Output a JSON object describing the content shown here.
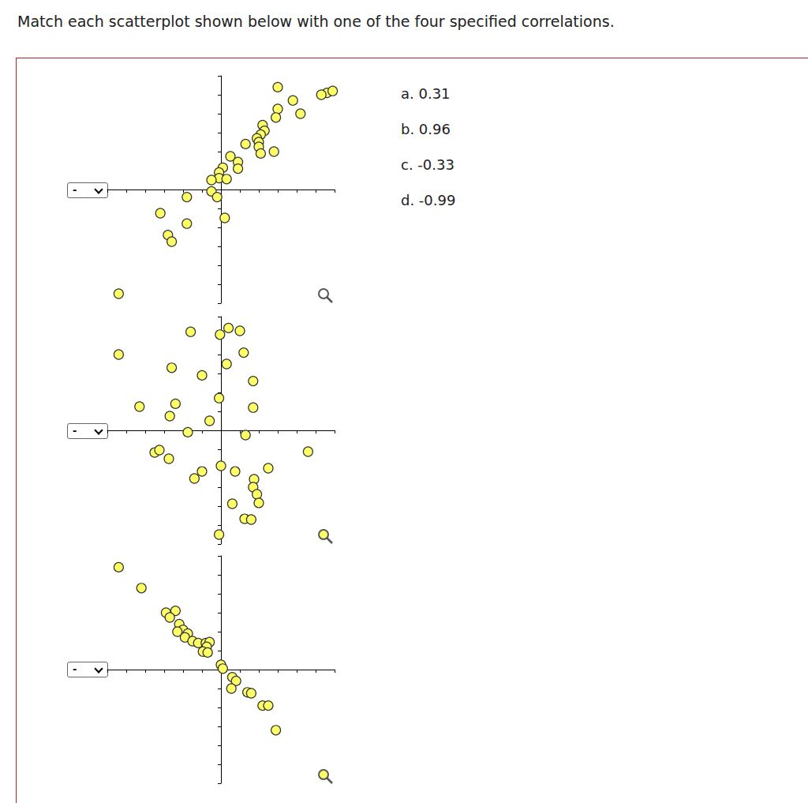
{
  "page": {
    "heading": "Match each scatterplot shown below with one of the four specified correlations.",
    "dropdowns": [
      "-",
      "-",
      "-"
    ],
    "options": [
      "a. 0.31",
      "b. 0.96",
      "c. -0.33",
      "d. -0.99"
    ]
  },
  "chart_data": [
    {
      "type": "scatter",
      "color": "#ffff66",
      "tick_labels": false,
      "grid": false,
      "xlim": [
        -6,
        6
      ],
      "ylim": [
        -6,
        6
      ],
      "xticks": [
        -6,
        -5,
        -4,
        -3,
        -2,
        -1,
        0,
        1,
        2,
        3,
        4,
        5,
        6
      ],
      "yticks": [
        -6,
        -5,
        -4,
        -3,
        -2,
        -1,
        0,
        1,
        2,
        3,
        4,
        5,
        6
      ],
      "x": [
        3.0,
        5.6,
        5.9,
        5.3,
        3.8,
        4.2,
        3.0,
        2.9,
        2.2,
        2.3,
        2.1,
        1.9,
        2.0,
        1.3,
        2.0,
        2.8,
        2.1,
        0.5,
        0.9,
        0.9,
        0.1,
        -0.1,
        -0.1,
        0.3,
        -0.5,
        -0.5,
        -0.2,
        -1.8,
        -3.2,
        -1.8,
        -2.8,
        -2.6,
        0.2,
        -5.4
      ],
      "y": [
        5.4,
        5.1,
        5.2,
        5.0,
        4.7,
        4.0,
        4.25,
        3.8,
        3.4,
        3.1,
        2.9,
        2.7,
        2.5,
        2.4,
        2.25,
        2.0,
        1.9,
        1.75,
        1.45,
        1.1,
        1.15,
        0.9,
        0.6,
        0.55,
        0.5,
        -0.1,
        -0.4,
        -0.4,
        -1.25,
        -1.8,
        -2.4,
        -2.75,
        -1.5,
        -5.5
      ]
    },
    {
      "type": "scatter",
      "color": "#ffff66",
      "tick_labels": false,
      "grid": false,
      "xlim": [
        -6,
        6
      ],
      "ylim": [
        -6,
        6
      ],
      "xticks": [
        -6,
        -5,
        -4,
        -3,
        -2,
        -1,
        0,
        1,
        2,
        3,
        4,
        5,
        6
      ],
      "yticks": [
        -6,
        -5,
        -4,
        -3,
        -2,
        -1,
        0,
        1,
        2,
        3,
        4,
        5,
        6
      ],
      "x": [
        -1.6,
        -0.05,
        0.4,
        1.0,
        1.2,
        -2.6,
        0.3,
        -1.0,
        1.7,
        -0.1,
        -2.4,
        -4.3,
        -2.7,
        1.7,
        -0.6,
        -1.75,
        1.3,
        4.6,
        2.5,
        -3.5,
        -3.25,
        -2.75,
        -1.0,
        -1.4,
        0.0,
        0.75,
        1.75,
        1.7,
        1.9,
        2.0,
        0.6,
        1.25,
        1.6,
        -0.1,
        -5.4
      ],
      "y": [
        5.2,
        5.05,
        5.4,
        5.25,
        4.1,
        3.3,
        3.5,
        2.9,
        2.6,
        1.7,
        1.4,
        1.25,
        0.75,
        1.2,
        0.5,
        -0.1,
        -0.25,
        -1.125,
        -2.0,
        -1.17,
        -1.04,
        -1.5,
        -2.17,
        -2.54,
        -1.875,
        -2.17,
        -2.58,
        -3.0,
        -3.375,
        -3.83,
        -3.875,
        -4.67,
        -4.71,
        -5.5,
        4.0
      ]
    },
    {
      "type": "scatter",
      "color": "#ffff66",
      "tick_labels": false,
      "grid": false,
      "xlim": [
        -6,
        6
      ],
      "ylim": [
        -6,
        6
      ],
      "xticks": [
        -6,
        -5,
        -4,
        -3,
        -2,
        -1,
        0,
        1,
        2,
        3,
        4,
        5,
        6
      ],
      "yticks": [
        -6,
        -5,
        -4,
        -3,
        -2,
        -1,
        0,
        1,
        2,
        3,
        4,
        5,
        6
      ],
      "x": [
        -5.4,
        -4.2,
        -2.9,
        -2.4,
        -2.7,
        -2.2,
        -2.0,
        -2.3,
        -1.75,
        -1.9,
        -1.5,
        -1.2,
        -0.8,
        -0.6,
        -0.75,
        -0.95,
        -0.7,
        0.0,
        0.1,
        0.6,
        0.8,
        0.55,
        1.4,
        1.6,
        2.2,
        2.5,
        2.9
      ],
      "y": [
        5.4,
        4.3,
        3.0,
        3.1,
        2.75,
        2.4,
        2.1,
        2.0,
        1.9,
        1.7,
        1.5,
        1.4,
        1.4,
        1.45,
        1.2,
        0.95,
        0.9,
        0.25,
        0.05,
        -0.4,
        -0.6,
        -1.0,
        -1.2,
        -1.25,
        -1.9,
        -1.9,
        -3.2
      ]
    }
  ]
}
